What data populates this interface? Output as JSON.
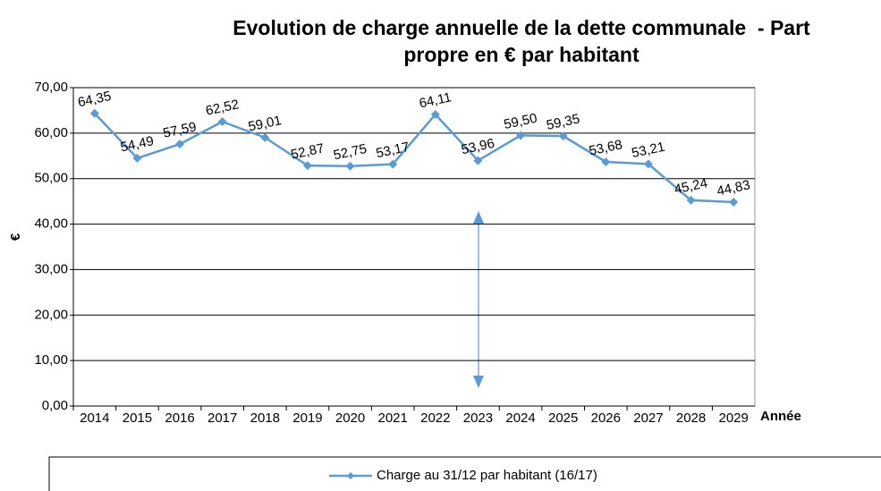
{
  "chart_data": {
    "type": "line",
    "title": [
      "Evolution de charge annuelle de la dette communale  - Part",
      "propre en € par habitant"
    ],
    "x_label": "Année",
    "y_label": "€",
    "categories": [
      "2014",
      "2015",
      "2016",
      "2017",
      "2018",
      "2019",
      "2020",
      "2021",
      "2022",
      "2023",
      "2024",
      "2025",
      "2026",
      "2027",
      "2028",
      "2029"
    ],
    "series": [
      {
        "name": "Charge au 31/12 par habitant (16/17)",
        "color": "#5b9bd5",
        "values": [
          64.35,
          54.49,
          57.59,
          62.52,
          59.01,
          52.87,
          52.75,
          53.17,
          64.11,
          53.96,
          59.5,
          59.35,
          53.68,
          53.21,
          45.24,
          44.83
        ],
        "value_labels": [
          "64,35",
          "54,49",
          "57,59",
          "62,52",
          "59,01",
          "52,87",
          "52,75",
          "53,17",
          "64,11",
          "53,96",
          "59,50",
          "59,35",
          "53,68",
          "53,21",
          "45,24",
          "44,83"
        ]
      }
    ],
    "ylim": [
      0,
      70
    ],
    "yticks": [
      {
        "value": 0,
        "label": "0,00"
      },
      {
        "value": 10,
        "label": "10,00"
      },
      {
        "value": 20,
        "label": "20,00"
      },
      {
        "value": 30,
        "label": "30,00"
      },
      {
        "value": 40,
        "label": "40,00"
      },
      {
        "value": 50,
        "label": "50,00"
      },
      {
        "value": 60,
        "label": "60,00"
      },
      {
        "value": 70,
        "label": "70,00"
      }
    ],
    "grid": true,
    "legend": "bottom"
  }
}
